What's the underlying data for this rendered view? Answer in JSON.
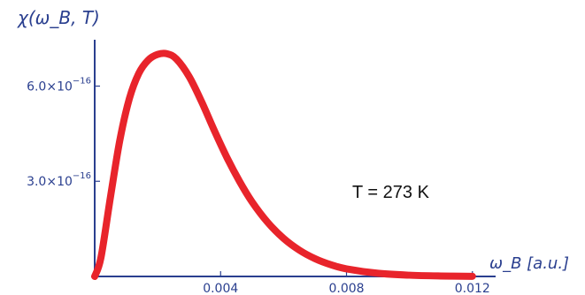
{
  "chart_data": {
    "type": "line",
    "ylabel": "χ(ω_B, T)",
    "xlabel": "ω_B [a.u.]",
    "annotation": "T = 273 K",
    "xlim": [
      0,
      0.0124
    ],
    "ylim": [
      0,
      7.6e-16
    ],
    "x_ticks": [
      {
        "value": 0.004,
        "label": "0.004"
      },
      {
        "value": 0.008,
        "label": "0.008"
      },
      {
        "value": 0.012,
        "label": "0.012"
      }
    ],
    "y_ticks": [
      {
        "value": 3e-16,
        "label": "3.0×10"
      },
      {
        "value": 6e-16,
        "label": "6.0×10"
      }
    ],
    "y_tick_exponent": "−16",
    "series": [
      {
        "color": "#e8242b",
        "points": [
          [
            0.0,
            0.0
          ],
          [
            0.0002,
            6e-17
          ],
          [
            0.0005,
            2.5e-16
          ],
          [
            0.0008,
            4.3e-16
          ],
          [
            0.0011,
            5.6e-16
          ],
          [
            0.0014,
            6.4e-16
          ],
          [
            0.0017,
            6.82e-16
          ],
          [
            0.002,
            7e-16
          ],
          [
            0.0023,
            7.02e-16
          ],
          [
            0.0026,
            6.85e-16
          ],
          [
            0.003,
            6.3e-16
          ],
          [
            0.0034,
            5.5e-16
          ],
          [
            0.0038,
            4.6e-16
          ],
          [
            0.0042,
            3.75e-16
          ],
          [
            0.0046,
            3e-16
          ],
          [
            0.005,
            2.35e-16
          ],
          [
            0.0055,
            1.7e-16
          ],
          [
            0.006,
            1.2e-16
          ],
          [
            0.0065,
            8.3e-17
          ],
          [
            0.007,
            5.6e-17
          ],
          [
            0.0075,
            3.7e-17
          ],
          [
            0.008,
            2.4e-17
          ],
          [
            0.009,
            1e-17
          ],
          [
            0.01,
            4e-18
          ],
          [
            0.011,
            1.5e-18
          ],
          [
            0.012,
            5e-19
          ]
        ]
      }
    ]
  }
}
